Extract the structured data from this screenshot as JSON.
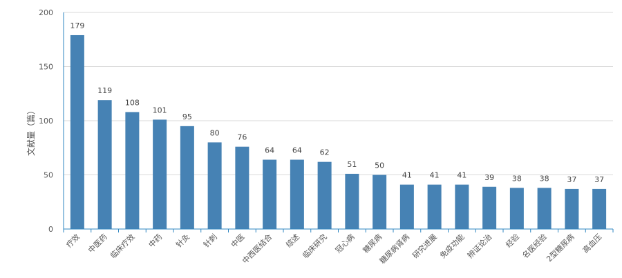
{
  "chart_data": {
    "type": "bar",
    "ylabel": "文献量（篇）",
    "ylim": [
      0,
      200
    ],
    "yticks": [
      0,
      50,
      100,
      150,
      200
    ],
    "grid": true,
    "categories": [
      "疗效",
      "中医药",
      "临床疗效",
      "中药",
      "针灸",
      "针刺",
      "中医",
      "中西医结合",
      "综述",
      "临床研究",
      "冠心病",
      "糖尿病",
      "糖尿病肾病",
      "研究进展",
      "免疫功能",
      "辨证论治",
      "经验",
      "名医经验",
      "2型糖尿病",
      "高血压"
    ],
    "series": [
      {
        "values": [
          179,
          119,
          108,
          101,
          95,
          80,
          76,
          64,
          64,
          62,
          51,
          50,
          41,
          41,
          41,
          39,
          38,
          38,
          37,
          37
        ]
      }
    ],
    "colors": {
      "bar": "#4682b4",
      "axis": "#2e86c1",
      "grid": "#d9d9d9"
    }
  }
}
